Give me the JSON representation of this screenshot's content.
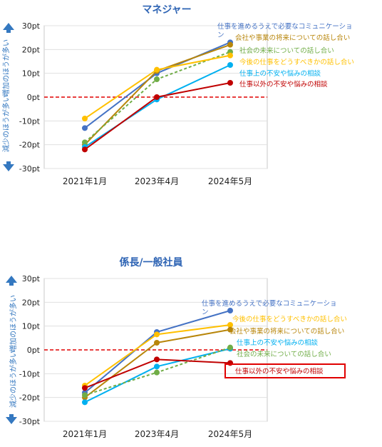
{
  "colors": {
    "communication": "#4472C4",
    "company_future": "#B8860B",
    "society_future": "#70AD47",
    "career": "#FFC000",
    "work_worries": "#00B0F0",
    "non_work_worries": "#C00000",
    "title": "#2E64B4",
    "zero_line": "#E00000",
    "highlight_box": "#E00000"
  },
  "chart_data": [
    {
      "type": "line",
      "title": "マネジャー",
      "categories": [
        "2021年1月",
        "2023年4月",
        "2024年5月"
      ],
      "ylim": [
        -30,
        30
      ],
      "yticks": [
        "-30pt",
        "-20pt",
        "-10pt",
        "0pt",
        "10pt",
        "20pt",
        "30pt"
      ],
      "ylabel_up": "増加のほうが多い",
      "ylabel_down": "減少のほうが多い",
      "series": [
        {
          "key": "communication",
          "name": "仕事を進めるうえで必要なコミュニケーション",
          "values": [
            -13,
            10,
            23
          ],
          "dashed": false
        },
        {
          "key": "company_future",
          "name": "会社や事業の将来についての話し合い",
          "values": [
            -20,
            11,
            22
          ],
          "dashed": false
        },
        {
          "key": "society_future",
          "name": "社会の未来についての話し合い",
          "values": [
            -19,
            7.5,
            19
          ],
          "dashed": true
        },
        {
          "key": "career",
          "name": "今後の仕事をどうすべきかの話し合い",
          "values": [
            -9,
            11.5,
            17.5
          ],
          "dashed": false
        },
        {
          "key": "work_worries",
          "name": "仕事上の不安や悩みの相談",
          "values": [
            -21,
            -1,
            13.5
          ],
          "dashed": false
        },
        {
          "key": "non_work_worries",
          "name": "仕事以外の不安や悩みの相談",
          "values": [
            -22,
            0,
            6
          ],
          "dashed": false
        }
      ]
    },
    {
      "type": "line",
      "title": "係長/一般社員",
      "categories": [
        "2021年1月",
        "2023年4月",
        "2024年5月"
      ],
      "ylim": [
        -30,
        30
      ],
      "yticks": [
        "-30pt",
        "-20pt",
        "-10pt",
        "0pt",
        "10pt",
        "20pt",
        "30pt"
      ],
      "ylabel_up": "増加のほうが多い",
      "ylabel_down": "減少のほうが多い",
      "series": [
        {
          "key": "communication",
          "name": "仕事を進めるうえで必要なコミュニケーション",
          "values": [
            -18,
            7.5,
            16.5
          ],
          "dashed": false
        },
        {
          "key": "career",
          "name": "今後の仕事をどうすべきかの話し合い",
          "values": [
            -15,
            6.5,
            10.5
          ],
          "dashed": false
        },
        {
          "key": "company_future",
          "name": "会社や事業の将来についての話し合い",
          "values": [
            -20,
            3,
            8.5
          ],
          "dashed": false
        },
        {
          "key": "work_worries",
          "name": "仕事上の不安や悩みの相談",
          "values": [
            -22,
            -7,
            0.5
          ],
          "dashed": false
        },
        {
          "key": "society_future",
          "name": "社会の未来についての話し合い",
          "values": [
            -19,
            -9.5,
            1
          ],
          "dashed": true
        },
        {
          "key": "non_work_worries",
          "name": "仕事以外の不安や悩みの相談",
          "values": [
            -16,
            -4,
            -5.5
          ],
          "dashed": false,
          "highlighted": true
        }
      ]
    }
  ]
}
